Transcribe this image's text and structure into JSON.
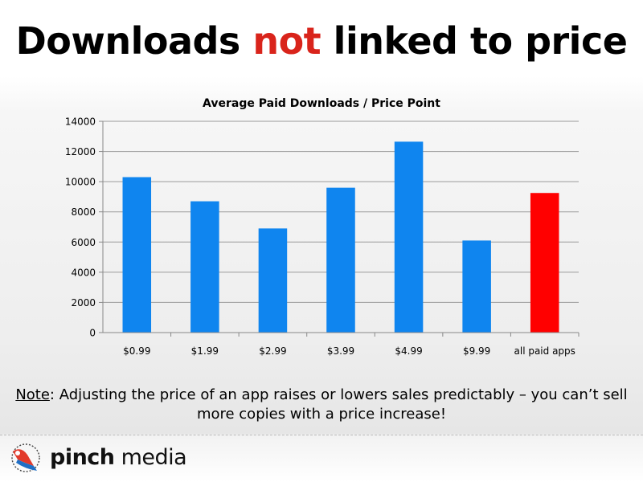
{
  "slide": {
    "title_part1": "Downloads ",
    "title_accent": "not",
    "title_part2": " linked to price",
    "accent_color": "#d9241b"
  },
  "note": {
    "label": "Note",
    "text": ":  Adjusting the price of an app raises or lowers sales predictably – you can’t sell more copies with a price increase!"
  },
  "logo": {
    "word1": "pinch",
    "word2": " media"
  },
  "chart_data": {
    "type": "bar",
    "title": "Average Paid Downloads / Price Point",
    "categories": [
      "$0.99",
      "$1.99",
      "$2.99",
      "$3.99",
      "$4.99",
      "$9.99",
      "all paid apps"
    ],
    "values": [
      10300,
      8700,
      6900,
      9600,
      12650,
      6100,
      9250
    ],
    "bar_colors": [
      "#0f85ef",
      "#0f85ef",
      "#0f85ef",
      "#0f85ef",
      "#0f85ef",
      "#0f85ef",
      "#ff0000"
    ],
    "ylim": [
      0,
      14000
    ],
    "yticks": [
      0,
      2000,
      4000,
      6000,
      8000,
      10000,
      12000,
      14000
    ],
    "grid": true,
    "legend": "none"
  }
}
